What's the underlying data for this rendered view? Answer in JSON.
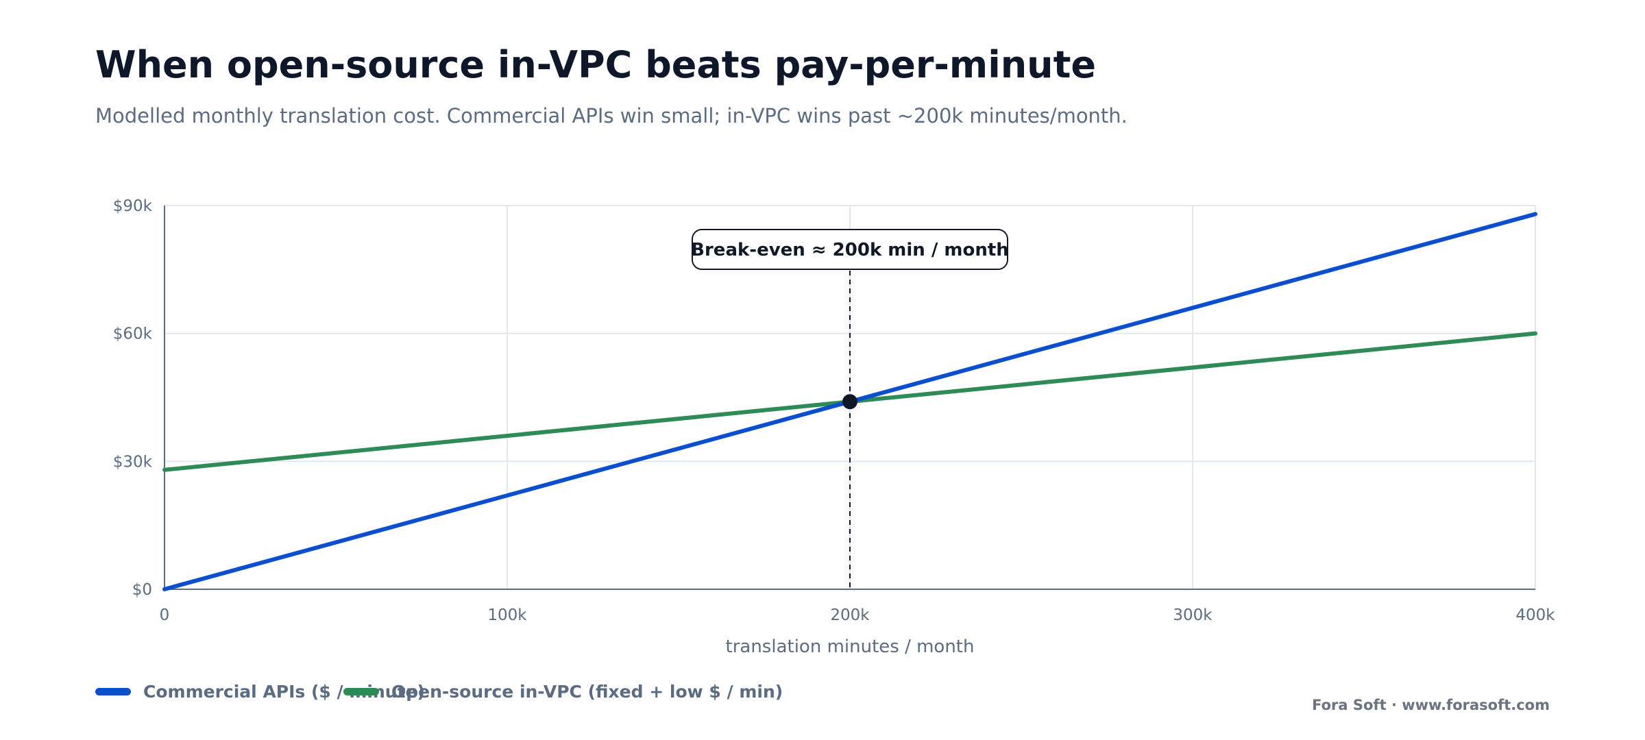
{
  "title": "When open-source in-VPC beats pay-per-minute",
  "subtitle": "Modelled monthly translation cost. Commercial APIs win small; in-VPC wins past ~200k minutes/month.",
  "footer": "Fora Soft · www.forasoft.com",
  "colors": {
    "commercial": "#0b4fcf",
    "open_source": "#2e8b57",
    "annotation": "#111827",
    "grid": "#e2e6ee",
    "axis": "#5b6b82",
    "tick_text": "#5b6b82"
  },
  "legend": [
    {
      "label": "Commercial APIs ($ / minute)",
      "color": "#0b4fcf"
    },
    {
      "label": "Open-source in-VPC (fixed + low $ / min)",
      "color": "#2e8b57"
    }
  ],
  "chart_data": {
    "type": "line",
    "xlabel": "translation minutes / month",
    "ylabel": "",
    "xlim": [
      0,
      400000
    ],
    "ylim": [
      0,
      90000
    ],
    "x_ticks": [
      0,
      100000,
      200000,
      300000,
      400000
    ],
    "x_tick_labels": [
      "0",
      "100k",
      "200k",
      "300k",
      "400k"
    ],
    "y_ticks": [
      0,
      30000,
      60000,
      90000
    ],
    "y_tick_labels": [
      "$0",
      "$30k",
      "$60k",
      "$90k"
    ],
    "grid": true,
    "series": [
      {
        "name": "Commercial APIs ($ / minute)",
        "color": "#0b4fcf",
        "points": [
          [
            0,
            0
          ],
          [
            200000,
            44000
          ],
          [
            400000,
            88000
          ]
        ]
      },
      {
        "name": "Open-source in-VPC (fixed + low $ / min)",
        "color": "#2e8b57",
        "points": [
          [
            0,
            28000
          ],
          [
            200000,
            44000
          ],
          [
            400000,
            60000
          ]
        ]
      }
    ],
    "annotation": {
      "text": "Break-even ≈ 200k min / month",
      "x": 200000,
      "y": 44000
    },
    "legend_position": "bottom-left"
  }
}
